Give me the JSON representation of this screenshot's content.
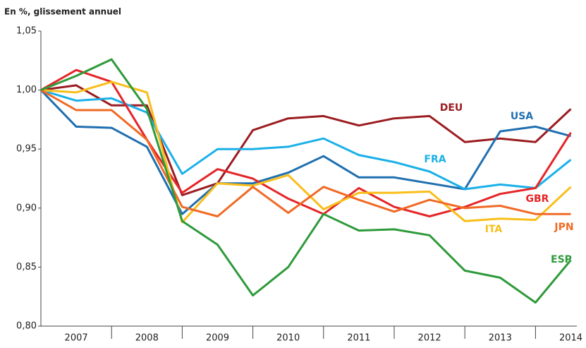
{
  "chart_data": {
    "type": "line",
    "title": "En %, glissement annuel",
    "categories": [
      null,
      "2007",
      null,
      "2008",
      null,
      "2009",
      null,
      "2010",
      null,
      "2011",
      null,
      "2012",
      null,
      "2013",
      null,
      "2014"
    ],
    "ylim": [
      0.8,
      1.05
    ],
    "yticks": [
      {
        "value": 0.8,
        "label": "0,80"
      },
      {
        "value": 0.85,
        "label": "0,85"
      },
      {
        "value": 0.9,
        "label": "0,90"
      },
      {
        "value": 0.95,
        "label": "0,95"
      },
      {
        "value": 1.0,
        "label": "1,00"
      },
      {
        "value": 1.05,
        "label": "1,05"
      }
    ],
    "grid": false,
    "series": [
      {
        "name": "DEU",
        "color": "#9b1c20",
        "values": [
          1.0,
          1.004,
          0.987,
          0.987,
          0.911,
          0.921,
          0.966,
          0.976,
          0.978,
          0.97,
          0.976,
          0.978,
          0.956,
          0.959,
          0.956,
          0.984
        ]
      },
      {
        "name": "USA",
        "color": "#1f6fb0",
        "values": [
          1.0,
          0.969,
          0.968,
          0.952,
          0.895,
          0.921,
          0.921,
          0.93,
          0.944,
          0.926,
          0.926,
          0.921,
          0.916,
          0.965,
          0.969,
          0.961
        ]
      },
      {
        "name": "FRA",
        "color": "#1ab0e8",
        "values": [
          1.0,
          0.991,
          0.993,
          0.981,
          0.929,
          0.95,
          0.95,
          0.952,
          0.959,
          0.945,
          0.939,
          0.931,
          0.916,
          0.92,
          0.917,
          0.941
        ]
      },
      {
        "name": "GBR",
        "color": "#e52528",
        "values": [
          1.0,
          1.017,
          1.007,
          0.958,
          0.913,
          0.933,
          0.925,
          0.908,
          0.895,
          0.917,
          0.901,
          0.893,
          0.901,
          0.912,
          0.917,
          0.964
        ]
      },
      {
        "name": "ITA",
        "color": "#f9be19",
        "values": [
          1.0,
          0.998,
          1.007,
          0.998,
          0.888,
          0.921,
          0.919,
          0.928,
          0.899,
          0.913,
          0.913,
          0.914,
          0.889,
          0.891,
          0.89,
          0.918
        ]
      },
      {
        "name": "JPN",
        "color": "#f06a25",
        "values": [
          1.0,
          0.983,
          0.983,
          0.958,
          0.901,
          0.893,
          0.918,
          0.896,
          0.918,
          0.907,
          0.897,
          0.907,
          0.9,
          0.902,
          0.895,
          0.895
        ]
      },
      {
        "name": "ESP",
        "color": "#2e9a3a",
        "values": [
          1.0,
          1.012,
          1.026,
          0.984,
          0.889,
          0.869,
          0.826,
          0.85,
          0.895,
          0.881,
          0.882,
          0.877,
          0.847,
          0.841,
          0.82,
          0.856
        ]
      }
    ]
  }
}
